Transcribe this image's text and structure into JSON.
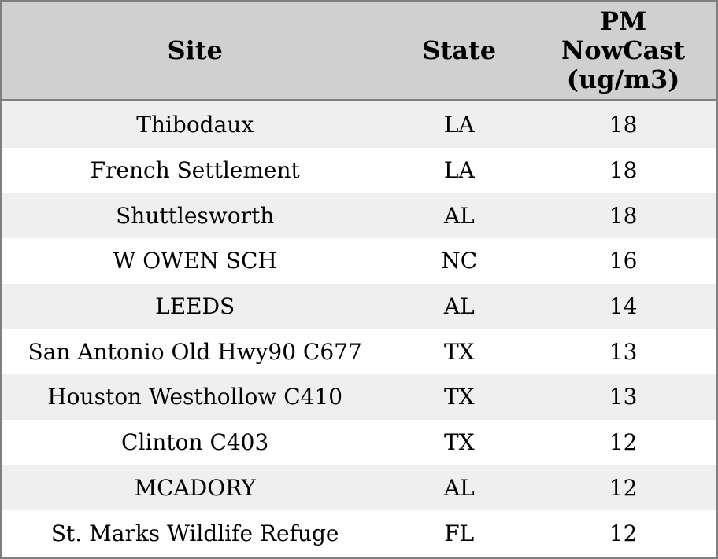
{
  "table": {
    "headers": {
      "site": "Site",
      "state": "State",
      "pm_nowcast": "PM\nNowCast\n(ug/m3)"
    },
    "rows": [
      {
        "site": "Thibodaux",
        "state": "LA",
        "value": "18"
      },
      {
        "site": "French Settlement",
        "state": "LA",
        "value": "18"
      },
      {
        "site": "Shuttlesworth",
        "state": "AL",
        "value": "18"
      },
      {
        "site": "W OWEN SCH",
        "state": "NC",
        "value": "16"
      },
      {
        "site": "LEEDS",
        "state": "AL",
        "value": "14"
      },
      {
        "site": "San Antonio Old Hwy90 C677",
        "state": "TX",
        "value": "13"
      },
      {
        "site": "Houston Westhollow C410",
        "state": "TX",
        "value": "13"
      },
      {
        "site": "Clinton C403",
        "state": "TX",
        "value": "12"
      },
      {
        "site": "MCADORY",
        "state": "AL",
        "value": "12"
      },
      {
        "site": "St. Marks Wildlife Refuge",
        "state": "FL",
        "value": "12"
      }
    ]
  },
  "colors": {
    "header_bg": "#d0d0d0",
    "row_stripe_bg": "#efefef",
    "row_bg": "#ffffff",
    "border": "#7f7f7f",
    "text": "#000000"
  },
  "chart_data": {
    "type": "table",
    "columns": [
      "Site",
      "State",
      "PM NowCast (ug/m3)"
    ],
    "rows": [
      [
        "Thibodaux",
        "LA",
        18
      ],
      [
        "French Settlement",
        "LA",
        18
      ],
      [
        "Shuttlesworth",
        "AL",
        18
      ],
      [
        "W OWEN SCH",
        "NC",
        16
      ],
      [
        "LEEDS",
        "AL",
        14
      ],
      [
        "San Antonio Old Hwy90 C677",
        "TX",
        13
      ],
      [
        "Houston Westhollow C410",
        "TX",
        13
      ],
      [
        "Clinton C403",
        "TX",
        12
      ],
      [
        "MCADORY",
        "AL",
        12
      ],
      [
        "St. Marks Wildlife Refuge",
        "FL",
        12
      ]
    ]
  }
}
